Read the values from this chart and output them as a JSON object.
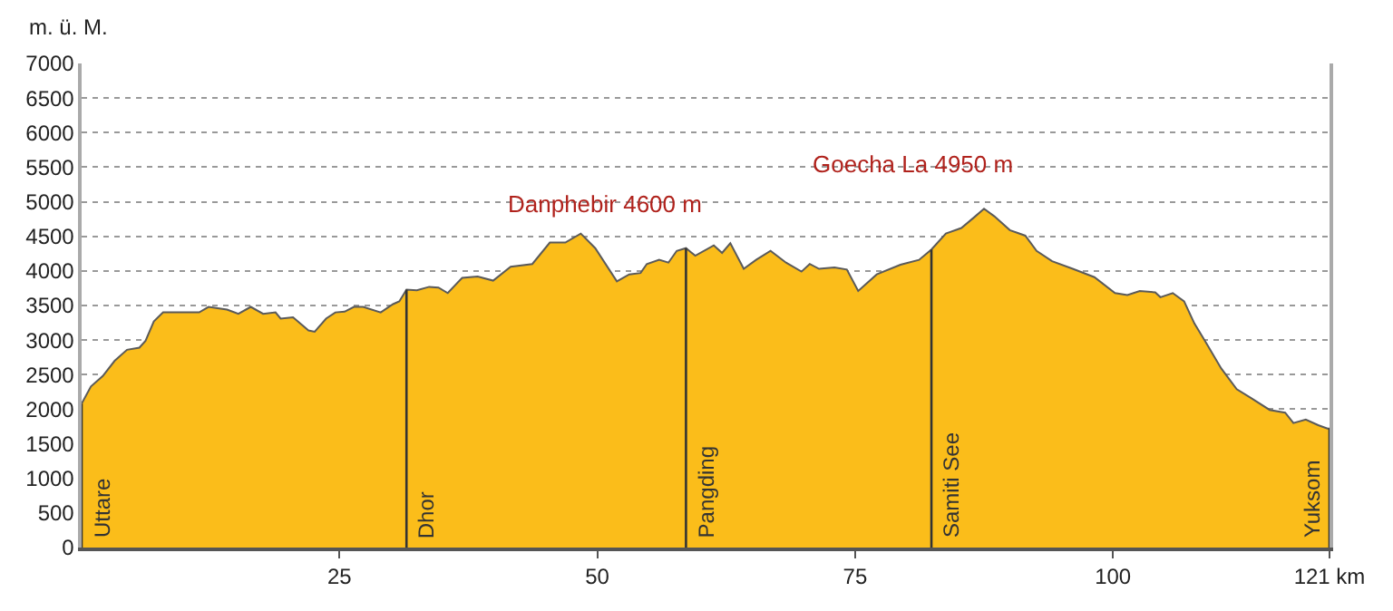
{
  "chart_data": {
    "type": "area",
    "ylabel": "m. ü. M.",
    "x": [
      0,
      0.9,
      2.05,
      3.2,
      4.4,
      5.6,
      6.2,
      7.0,
      7.9,
      9.7,
      11.4,
      12.3,
      14.1,
      15.2,
      16.4,
      17.6,
      18.8,
      19.3,
      20.5,
      22.0,
      22.6,
      23.7,
      24.6,
      25.5,
      26.4,
      27.3,
      29.0,
      30.2,
      30.8,
      31.5,
      32.5,
      33.7,
      34.6,
      35.5,
      36.9,
      38.4,
      39.9,
      41.6,
      43.7,
      45.4,
      46.9,
      48.4,
      49.8,
      51.9,
      53.1,
      54.2,
      54.8,
      56.0,
      56.9,
      57.7,
      58.6,
      59.5,
      61.3,
      62.1,
      62.9,
      64.2,
      65.4,
      66.8,
      68.3,
      69.8,
      70.6,
      71.5,
      73.0,
      74.2,
      75.3,
      77.1,
      79.4,
      81.2,
      82.4,
      83.8,
      85.3,
      86.5,
      87.5,
      88.5,
      90.0,
      91.5,
      92.6,
      94.1,
      96.1,
      98.2,
      100.2,
      101.4,
      102.6,
      104.1,
      104.6,
      105.8,
      106.9,
      107.9,
      109.0,
      110.5,
      112.0,
      113.4,
      115.2,
      116.7,
      117.5,
      118.7,
      119.9,
      120.8,
      121
    ],
    "series": [
      {
        "color": "#fbbd1a",
        "values": [
          2080,
          2330,
          2480,
          2700,
          2860,
          2890,
          2990,
          3270,
          3400,
          3400,
          3400,
          3480,
          3440,
          3380,
          3480,
          3380,
          3400,
          3310,
          3330,
          3140,
          3120,
          3310,
          3400,
          3410,
          3480,
          3480,
          3400,
          3520,
          3560,
          3730,
          3720,
          3770,
          3760,
          3680,
          3900,
          3920,
          3860,
          4060,
          4100,
          4410,
          4410,
          4540,
          4330,
          3850,
          3950,
          3970,
          4100,
          4160,
          4120,
          4290,
          4330,
          4220,
          4370,
          4260,
          4400,
          4030,
          4160,
          4290,
          4120,
          3990,
          4100,
          4030,
          4050,
          4020,
          3710,
          3950,
          4090,
          4160,
          4310,
          4540,
          4620,
          4770,
          4900,
          4790,
          4590,
          4510,
          4290,
          4140,
          4030,
          3910,
          3680,
          3650,
          3710,
          3690,
          3620,
          3680,
          3560,
          3240,
          2970,
          2590,
          2290,
          2160,
          1990,
          1950,
          1800,
          1850,
          1770,
          1720,
          1720
        ]
      }
    ],
    "xlim": [
      0,
      121
    ],
    "xticks": [
      25,
      50,
      75,
      100,
      {
        "value": 121,
        "label": "121 km"
      }
    ],
    "ylim": [
      0,
      7000
    ],
    "yticks": [
      0,
      500,
      1000,
      1500,
      2000,
      2500,
      3000,
      3500,
      4000,
      4500,
      5000,
      5500,
      6000,
      6500,
      7000
    ],
    "grid": "y",
    "ref_lines": [
      {
        "axis": "x",
        "value": 0,
        "label": "Uttare"
      },
      {
        "axis": "x",
        "value": 31.5,
        "label": "Dhor"
      },
      {
        "axis": "x",
        "value": 58.6,
        "label": "Pangding"
      },
      {
        "axis": "x",
        "value": 82.4,
        "label": "Samiti See"
      },
      {
        "axis": "x",
        "value": 121,
        "label": "Yuksom"
      }
    ],
    "annotations": [
      "Danphebir 4600 m",
      "Goecha La 4950 m"
    ]
  }
}
